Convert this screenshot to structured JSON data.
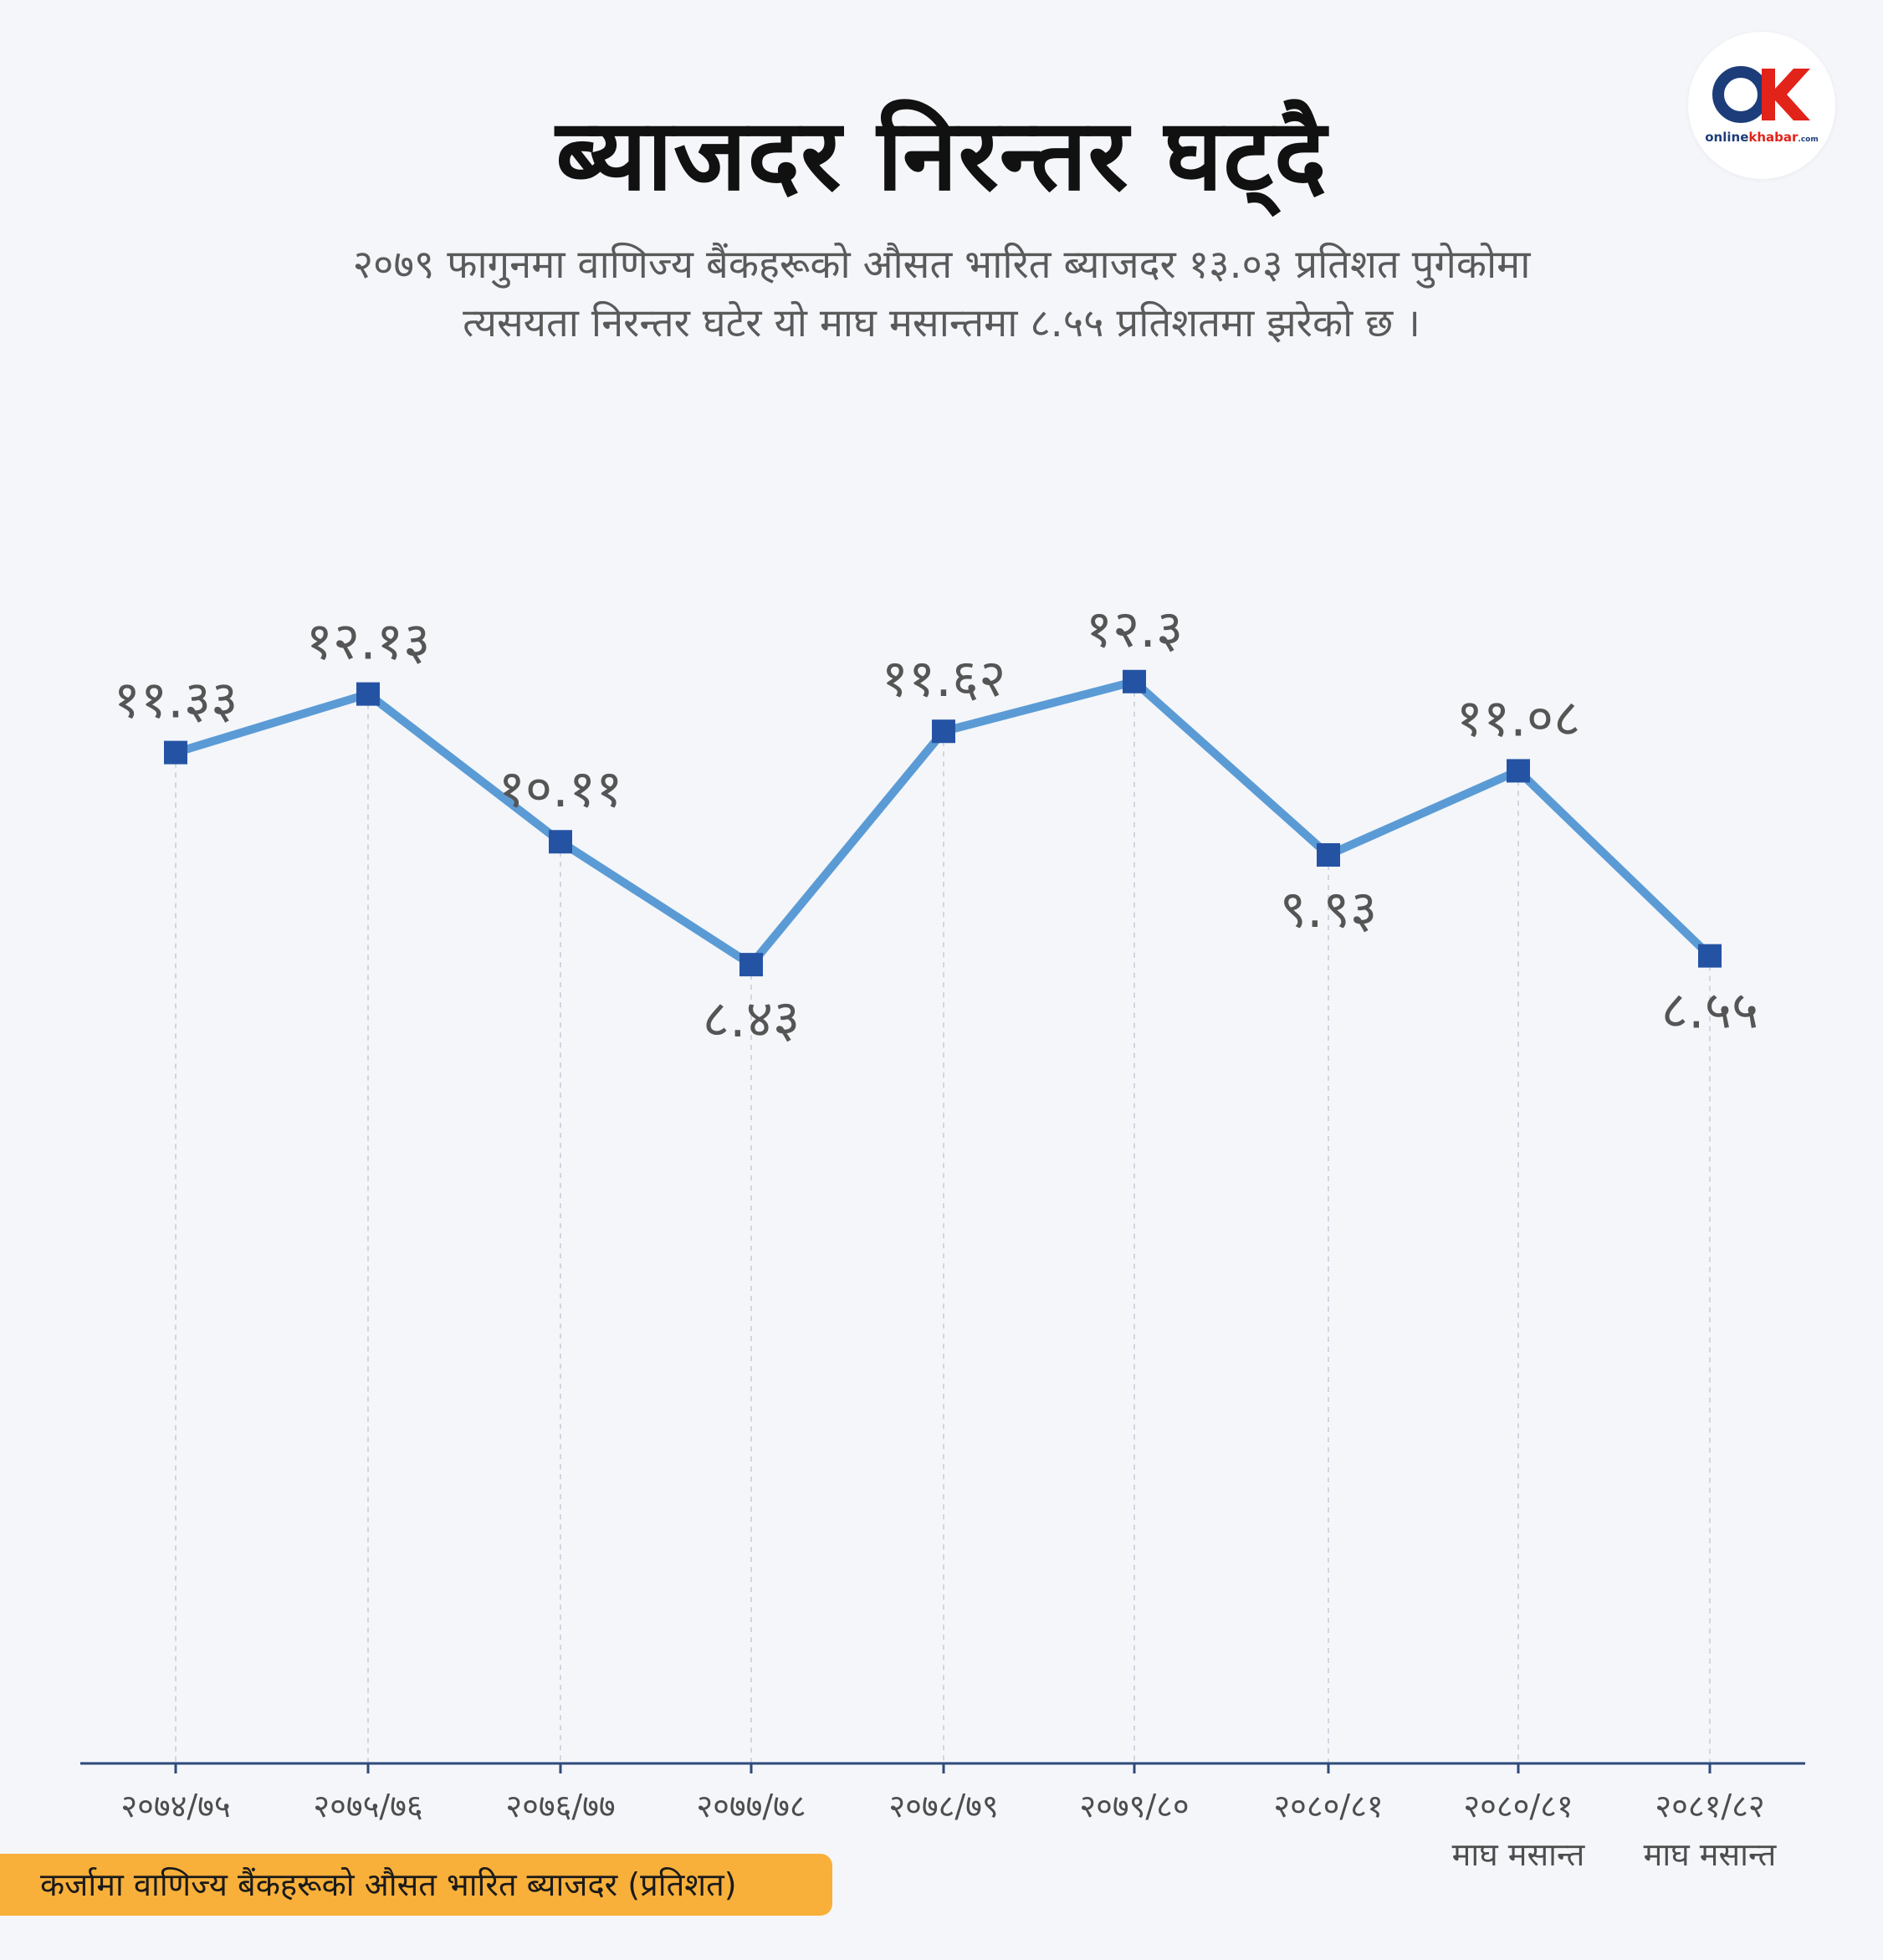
{
  "header": {
    "title": "ब्याजदर निरन्तर घट्दै",
    "subtitle_line1": "२०७९ फागुनमा वाणिज्य बैंकहरूको औसत भारित ब्याजदर १३.०३ प्रतिशत पुगेकोमा",
    "subtitle_line2": "त्यसयता निरन्तर घटेर यो माघ मसान्तमा ८.५५ प्रतिशतमा झरेको छ ।"
  },
  "logo": {
    "name": "onlinekhabar-logo",
    "text_online": "online",
    "text_khabar": "khabar",
    "text_com": ".com"
  },
  "legend": {
    "label": "कर्जामा वाणिज्य बैंकहरूको औसत भारित ब्याजदर  (प्रतिशत)"
  },
  "colors": {
    "background": "#f4f6fa",
    "line": "#5b9bd5",
    "marker": "#2553a4",
    "axis": "#2f4a7a",
    "legend_bg": "#f8b03a"
  },
  "chart_data": {
    "type": "line",
    "title": "ब्याजदर निरन्तर घट्दै",
    "categories": [
      [
        "२०७४/७५"
      ],
      [
        "२०७५/७६"
      ],
      [
        "२०७६/७७"
      ],
      [
        "२०७७/७८"
      ],
      [
        "२०७८/७९"
      ],
      [
        "२०७९/८०"
      ],
      [
        "२०८०/८१"
      ],
      [
        "२०८०/८१",
        "माघ मसान्त"
      ],
      [
        "२०८१/८२",
        "माघ मसान्त"
      ]
    ],
    "values": [
      11.33,
      12.13,
      10.11,
      8.43,
      11.62,
      12.3,
      9.93,
      11.08,
      8.55
    ],
    "value_labels": [
      "११.३३",
      "१२.१३",
      "१०.११",
      "८.४३",
      "११.६२",
      "१२.३",
      "९.९३",
      "११.०८",
      "८.५५"
    ],
    "label_position": [
      "above",
      "above",
      "above",
      "below",
      "above",
      "above",
      "below",
      "above",
      "below"
    ],
    "ylim": [
      3.09,
      13.75
    ],
    "grid": "vertical dashed guides",
    "legend": "bottom-left"
  }
}
